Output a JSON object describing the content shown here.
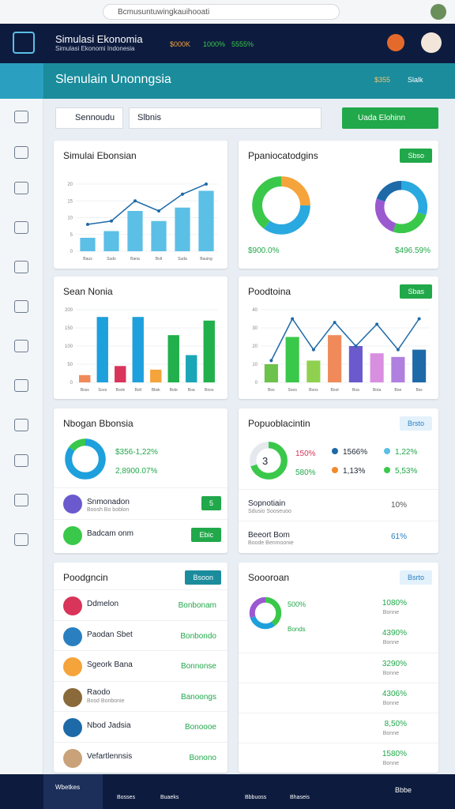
{
  "browser": {
    "url": "Bcmusuntuwingkauihooati"
  },
  "header": {
    "title": "Simulasi Ekonomia",
    "subtitle": "Simulasi Ekonomi Indonesia",
    "stats": [
      "$000K",
      "1000%",
      "5555%"
    ]
  },
  "topbar": {
    "title": "Slenulain Unonngsia",
    "badge": "$355",
    "menu": "Slalk"
  },
  "toolbar": {
    "search1": "Sennoudu",
    "search2": "Slbnis",
    "button": "Uada Elohinn"
  },
  "panels": [
    {
      "title": "Simulai Ebonsian",
      "chart": {
        "type": "bar-line",
        "categories": [
          "Baus",
          "Sudo",
          "Bana",
          "Bolt",
          "Suda",
          "Bauing"
        ],
        "values": [
          4,
          6,
          12,
          9,
          13,
          18
        ],
        "line": [
          8,
          9,
          15,
          12,
          17,
          20
        ],
        "color": "#5bbfe6",
        "line_color": "#1e6aa8",
        "ylim": [
          0,
          24
        ],
        "yticks": [
          0,
          5,
          10,
          15,
          20
        ]
      }
    },
    {
      "title": "Ppaniocatodgins",
      "button": "Sbso",
      "donuts": [
        {
          "values": [
            25,
            35,
            40
          ],
          "colors": [
            "#f5a33b",
            "#2aa8e0",
            "#3ac84a"
          ],
          "label": "$900.0%"
        },
        {
          "values": [
            30,
            25,
            25,
            20
          ],
          "colors": [
            "#2aa8e0",
            "#3ac84a",
            "#9b59d0",
            "#1e6aa8"
          ],
          "label": "$496.59%"
        }
      ]
    },
    {
      "title": "Sean Nonia",
      "chart": {
        "type": "bar",
        "categories": [
          "Boss",
          "Sces",
          "Book",
          "Bolt",
          "Bbsk",
          "Bote",
          "Boa",
          "Boos"
        ],
        "values": [
          20,
          180,
          45,
          180,
          35,
          130,
          75,
          170
        ],
        "colors": [
          "#f08a5b",
          "#1ea0dc",
          "#d9345a",
          "#1ea0dc",
          "#f5a33b",
          "#21b04b",
          "#1aa6b7",
          "#21b04b"
        ],
        "ylim": [
          0,
          200
        ],
        "yticks": [
          0,
          50,
          100,
          150,
          200
        ]
      }
    },
    {
      "title": "Poodtoina",
      "button": "Sbas",
      "chart": {
        "type": "bar-line",
        "categories": [
          "Bos",
          "Soos",
          "Boos",
          "Boot",
          "Boa",
          "Bota",
          "Boe",
          "Bss"
        ],
        "values": [
          10,
          25,
          12,
          26,
          20,
          16,
          14,
          18
        ],
        "line": [
          12,
          35,
          18,
          33,
          20,
          32,
          18,
          35
        ],
        "colors": [
          "#6cc24a",
          "#3ac84a",
          "#8fd14f",
          "#f08a5b",
          "#6a5acd",
          "#d98fe0",
          "#b07fe0",
          "#1e6aa8"
        ],
        "line_color": "#1e6aa8",
        "ylim": [
          0,
          40
        ],
        "yticks": [
          0,
          10,
          20,
          30,
          40
        ]
      }
    },
    {
      "title": "Nbogan Bbonsia",
      "donut": {
        "values": [
          85,
          15
        ],
        "colors": [
          "#1ea0dc",
          "#3ac84a"
        ]
      },
      "stats": [
        "$356-1,22%",
        "2,8900.07%"
      ],
      "items": [
        {
          "name": "Snmonadon",
          "sub": "Boosh Bo boblon",
          "button": "5"
        },
        {
          "name": "Badcam onm",
          "button": "Ebic"
        }
      ]
    },
    {
      "title": "Popuoblacintin",
      "button": "Brsto",
      "donut": {
        "values": [
          70,
          30
        ],
        "colors": [
          "#3ac84a",
          "#e5e9ee"
        ],
        "center": "3"
      },
      "stats": [
        "150%",
        "580%"
      ],
      "legend": [
        {
          "label": "1566%",
          "color": "#1e6aa8"
        },
        {
          "label": "1,22%",
          "color": "#5bbfe6"
        },
        {
          "label": "1,13%",
          "color": "#f08a2b"
        },
        {
          "label": "5,53%",
          "color": "#3ac84a"
        }
      ],
      "rows": [
        {
          "name": "Sopnotiain",
          "sub": "Sdusio Sooseuoo",
          "value": "10%"
        },
        {
          "name": "Beeort Bom",
          "sub": "Boode Benmoonie",
          "value": "61%"
        }
      ]
    },
    {
      "title": "Poodgncin",
      "button": "Bsoon",
      "rows": [
        {
          "name": "Ddmelon",
          "value": "Bonbonam"
        },
        {
          "name": "Paodan Sbet",
          "value": "Bonbondo"
        },
        {
          "name": "Sgeork Bana",
          "value": "Bonnonse"
        },
        {
          "name": "Raodo",
          "sub": "Bosd Bonbonie",
          "value": "Banoongs"
        },
        {
          "name": "Nbod Jadsia",
          "value": "Bonoooe"
        },
        {
          "name": "Vefartlennsis",
          "value": "Bonono"
        }
      ]
    },
    {
      "title": "Soooroan",
      "button": "Bsrto",
      "donut": {
        "values": [
          40,
          30,
          30
        ],
        "colors": [
          "#3ac84a",
          "#1ea0dc",
          "#9b59d0"
        ]
      },
      "donut_labels": [
        "500%",
        "Bonds"
      ],
      "rows": [
        {
          "value": "1080%",
          "sub": "Bonne"
        },
        {
          "value": "4390%",
          "sub": "Bonne"
        },
        {
          "value": "3290%",
          "sub": "Bonne"
        },
        {
          "value": "4306%",
          "sub": "Bonne"
        },
        {
          "value": "8,50%",
          "sub": "Bonne"
        },
        {
          "value": "1580%",
          "sub": "Bonne"
        }
      ]
    }
  ],
  "nav": {
    "items": [
      "Wbetkes",
      "Bosses",
      "Buaeks",
      "Bbbuoss",
      "Bhaseis"
    ],
    "right": "Bbbe"
  }
}
